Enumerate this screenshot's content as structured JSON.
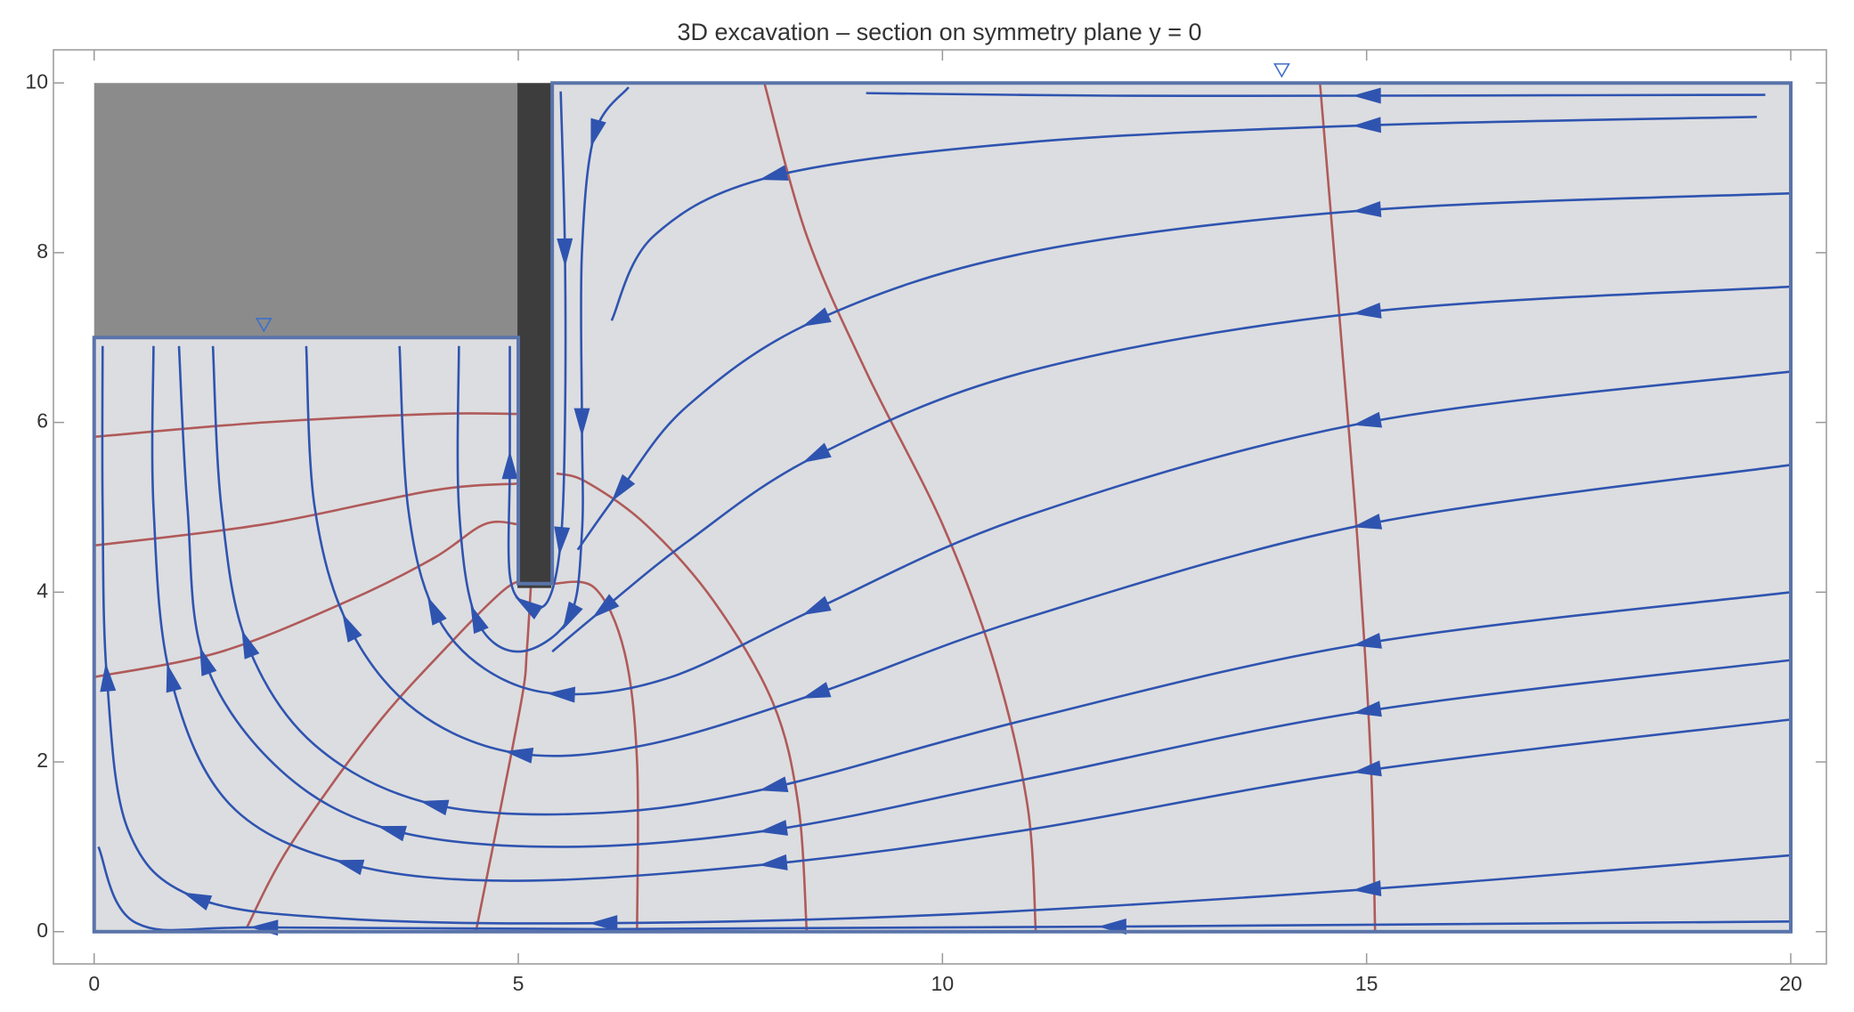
{
  "chart_data": {
    "type": "streamline",
    "title": "3D excavation – section on symmetry plane y = 0",
    "xlim": [
      -0.48,
      20.42
    ],
    "ylim": [
      -0.38,
      10.39
    ],
    "xticks": [
      0,
      5,
      10,
      15,
      20
    ],
    "yticks": [
      0,
      2,
      4,
      6,
      8,
      10
    ],
    "domain": {
      "color": "#dcdde0",
      "edge_color": "#5a74aa",
      "x": [
        0,
        20,
        20,
        5.4,
        5.4,
        5,
        5,
        0
      ],
      "y": [
        0,
        0,
        10,
        10,
        4.1,
        4.1,
        7,
        7
      ]
    },
    "excavation": {
      "color": "#8b8b8b",
      "x": [
        0,
        5,
        5,
        0
      ],
      "y": [
        7,
        7,
        10,
        10
      ]
    },
    "wall": {
      "color": "#3d3d3d",
      "x": [
        4.99,
        5.39,
        5.39,
        4.99
      ],
      "y": [
        4.05,
        4.05,
        10,
        10
      ]
    },
    "water_levels": {
      "color": "#3f6fc8",
      "x": [
        2,
        14
      ],
      "y": [
        7.15,
        10.15
      ]
    },
    "streamline_color": "#2f54b0",
    "equipotential_color": "#b05a5a",
    "streamlines": [
      {
        "x": [
          19.7,
          15,
          12,
          9.1
        ],
        "y": [
          9.86,
          9.85,
          9.85,
          9.88
        ]
      },
      {
        "x": [
          19.6,
          15,
          11,
          8,
          6.6,
          6.1
        ],
        "y": [
          9.6,
          9.5,
          9.3,
          8.9,
          8.2,
          7.2
        ]
      },
      {
        "x": [
          20,
          15,
          11,
          8.5,
          7,
          6.2,
          5.7
        ],
        "y": [
          8.7,
          8.5,
          8.0,
          7.2,
          6.2,
          5.2,
          4.5
        ]
      },
      {
        "x": [
          20,
          15,
          11,
          8.5,
          7,
          6,
          5.4
        ],
        "y": [
          7.6,
          7.3,
          6.6,
          5.6,
          4.6,
          3.8,
          3.3
        ]
      },
      {
        "x": [
          20,
          15,
          11,
          8.5,
          6.8,
          5.5,
          4.6,
          4,
          3.7,
          3.6
        ],
        "y": [
          6.6,
          6.0,
          4.9,
          3.8,
          3.0,
          2.8,
          3.1,
          3.8,
          5,
          6.9
        ]
      },
      {
        "x": [
          20,
          15,
          11,
          8.5,
          6.5,
          5,
          3.8,
          3,
          2.6,
          2.5
        ],
        "y": [
          5.5,
          4.8,
          3.7,
          2.8,
          2.2,
          2.1,
          2.6,
          3.6,
          5,
          6.9
        ]
      },
      {
        "x": [
          20,
          15,
          11,
          8,
          6,
          4,
          2.6,
          1.8,
          1.5,
          1.4
        ],
        "y": [
          4.0,
          3.4,
          2.5,
          1.7,
          1.4,
          1.5,
          2.2,
          3.4,
          5,
          6.9
        ]
      },
      {
        "x": [
          20,
          15,
          11,
          8,
          5.5,
          3.5,
          2.2,
          1.3,
          1.1,
          1.0
        ],
        "y": [
          3.2,
          2.6,
          1.8,
          1.2,
          1.0,
          1.2,
          1.9,
          3.2,
          5,
          6.9
        ]
      },
      {
        "x": [
          20,
          15,
          11,
          8,
          5,
          3,
          1.6,
          0.9,
          0.7,
          0.7
        ],
        "y": [
          2.5,
          1.9,
          1.2,
          0.8,
          0.6,
          0.8,
          1.5,
          3,
          5,
          6.9
        ]
      },
      {
        "x": [
          20,
          15,
          10,
          6,
          3,
          1.2,
          0.4,
          0.15,
          0.1,
          0.1
        ],
        "y": [
          0.9,
          0.5,
          0.2,
          0.1,
          0.15,
          0.4,
          1.2,
          3,
          5,
          6.9
        ]
      },
      {
        "x": [
          20,
          12,
          6,
          2,
          0.5,
          0.05
        ],
        "y": [
          0.12,
          0.06,
          0.03,
          0.05,
          0.1,
          1
        ]
      },
      {
        "x": [
          5.5,
          5.55,
          5.55,
          5.5,
          5.35,
          5.1,
          4.9,
          4.9,
          4.9
        ],
        "y": [
          9.9,
          8,
          6,
          4.6,
          3.9,
          3.85,
          4.2,
          5.5,
          6.9
        ]
      },
      {
        "x": [
          6.3,
          5.9,
          5.75,
          5.75,
          5.75,
          5.6,
          5.0,
          4.5,
          4.3,
          4.3
        ],
        "y": [
          9.95,
          9.4,
          8,
          6,
          4.7,
          3.7,
          3.3,
          3.7,
          5,
          6.9
        ]
      }
    ],
    "equipotentials": [
      {
        "x": [
          0,
          2,
          4,
          5
        ],
        "y": [
          5.83,
          6.0,
          6.1,
          6.1
        ]
      },
      {
        "x": [
          0,
          2,
          4,
          5
        ],
        "y": [
          4.55,
          4.8,
          5.2,
          5.28
        ]
      },
      {
        "x": [
          0,
          1.5,
          3,
          4,
          4.6,
          5
        ],
        "y": [
          3.0,
          3.3,
          3.9,
          4.4,
          4.8,
          4.8
        ]
      },
      {
        "x": [
          1.8,
          2.3,
          3.3,
          4.2,
          4.8,
          5.05
        ],
        "y": [
          0.05,
          1.0,
          2.4,
          3.4,
          4.0,
          4.15
        ]
      },
      {
        "x": [
          4.5,
          4.8,
          5.05,
          5.1,
          5.15
        ],
        "y": [
          0,
          1.5,
          2.8,
          3.3,
          4.1
        ]
      },
      {
        "x": [
          6.4,
          6.4,
          6.25,
          5.9,
          5.4
        ],
        "y": [
          0,
          2.0,
          3.3,
          4.05,
          4.1
        ]
      },
      {
        "x": [
          8.4,
          8.3,
          8.0,
          7.3,
          6.5,
          5.8,
          5.45
        ],
        "y": [
          0,
          1.5,
          2.7,
          3.9,
          4.8,
          5.3,
          5.4
        ]
      },
      {
        "x": [
          11.1,
          11.0,
          10.6,
          10,
          9.1,
          8.4,
          7.9
        ],
        "y": [
          0,
          1.5,
          3.2,
          4.8,
          6.6,
          8.2,
          10
        ]
      },
      {
        "x": [
          15.1,
          15.05,
          14.9,
          14.7,
          14.45
        ],
        "y": [
          0,
          2,
          4.5,
          7,
          10
        ]
      }
    ]
  }
}
